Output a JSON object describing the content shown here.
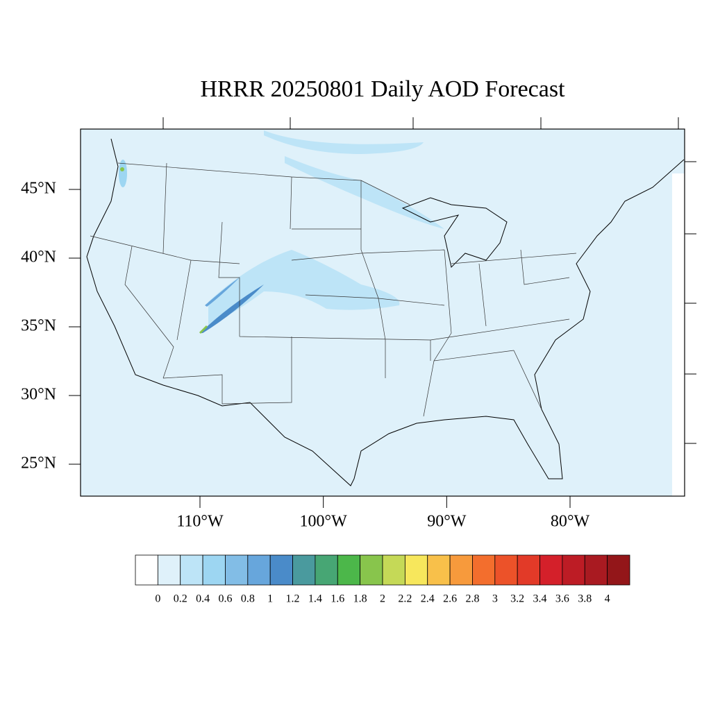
{
  "title": "HRRR 20250801 Daily AOD Forecast",
  "lat_ticks": [
    {
      "value": 45,
      "label": "45°N"
    },
    {
      "value": 40,
      "label": "40°N"
    },
    {
      "value": 35,
      "label": "35°N"
    },
    {
      "value": 30,
      "label": "30°N"
    },
    {
      "value": 25,
      "label": "25°N"
    }
  ],
  "lon_ticks": [
    {
      "value": -110,
      "label": "110°W"
    },
    {
      "value": -100,
      "label": "100°W"
    },
    {
      "value": -90,
      "label": "90°W"
    },
    {
      "value": -80,
      "label": "80°W"
    }
  ],
  "colorbar": {
    "levels": [
      0,
      0.2,
      0.4,
      0.6,
      0.8,
      1,
      1.2,
      1.4,
      1.6,
      1.8,
      2,
      2.2,
      2.4,
      2.6,
      2.8,
      3,
      3.2,
      3.4,
      3.6,
      3.8,
      4
    ],
    "colors": [
      "#ffffff",
      "#dff1fa",
      "#bde4f7",
      "#9dd6f2",
      "#82bde6",
      "#67a6dc",
      "#4a8bc9",
      "#4a9a9e",
      "#47a674",
      "#4cb74a",
      "#88c54c",
      "#c5d957",
      "#f7e75c",
      "#f8c04a",
      "#f79a3c",
      "#f36e2d",
      "#ec5229",
      "#e23a28",
      "#d4202a",
      "#bd1c25",
      "#a91a21",
      "#931619"
    ]
  }
}
